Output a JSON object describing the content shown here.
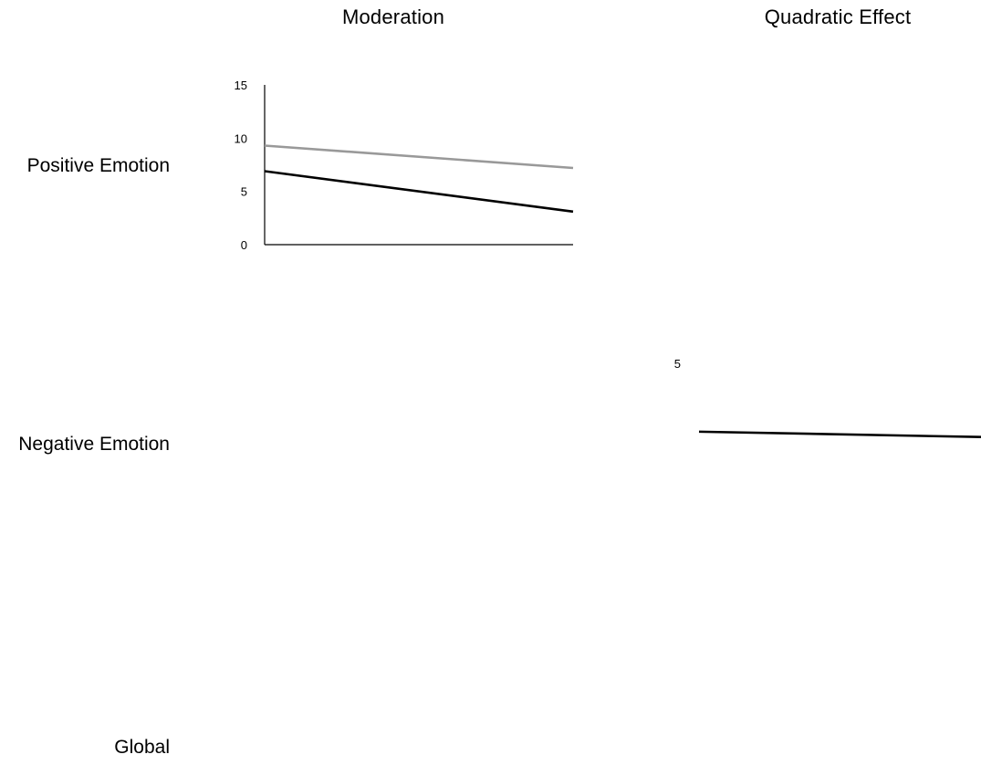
{
  "headers": {
    "moderation": "Moderation",
    "quadratic": "Quadratic Effect"
  },
  "rows": {
    "positive": "Positive Emotion",
    "negative": "Negative Emotion",
    "global": "Global"
  },
  "colors": {
    "series_dark": "#000000",
    "series_light": "#999999",
    "axis": "#000000"
  },
  "chart_data": [
    {
      "panel": "Positive Emotion / Moderation",
      "type": "line",
      "title": "",
      "xlabel": "",
      "ylabel": "",
      "ylim": [
        0,
        15
      ],
      "y_ticks": [
        "0",
        "5",
        "10",
        "15"
      ],
      "x": [
        0,
        1
      ],
      "series": [
        {
          "color": "#999999",
          "values": [
            9.3,
            7.2
          ]
        },
        {
          "color": "#000000",
          "values": [
            6.9,
            3.1
          ]
        }
      ],
      "grid": false,
      "legend": "none"
    },
    {
      "panel": "Negative Emotion / Quadratic Effect",
      "type": "line",
      "title": "",
      "xlabel": "",
      "ylabel": "",
      "y_ticks": [
        "5"
      ],
      "x": [
        0,
        1
      ],
      "series": [
        {
          "color": "#000000",
          "values": [
            -1.4,
            -1.9
          ]
        }
      ],
      "grid": false,
      "legend": "none"
    }
  ]
}
